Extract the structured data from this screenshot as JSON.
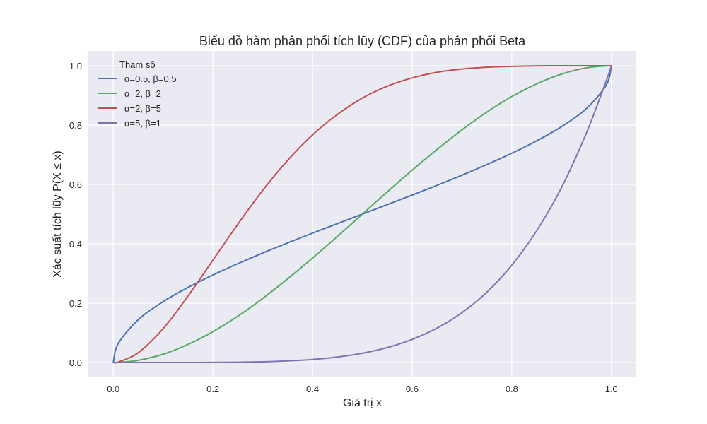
{
  "chart_data": {
    "type": "line",
    "title": "Biểu đồ hàm phân phối tích lũy (CDF) của phân phối Beta",
    "xlabel": "Giá trị x",
    "ylabel": "Xác suất tích lũy P(X ≤ x)",
    "xlim": [
      -0.05,
      1.05
    ],
    "ylim": [
      -0.05,
      1.05
    ],
    "xticks": [
      0.0,
      0.2,
      0.4,
      0.6,
      0.8,
      1.0
    ],
    "yticks": [
      0.0,
      0.2,
      0.4,
      0.6,
      0.8,
      1.0
    ],
    "xtick_labels": [
      "0.0",
      "0.2",
      "0.4",
      "0.6",
      "0.8",
      "1.0"
    ],
    "ytick_labels": [
      "0.0",
      "0.2",
      "0.4",
      "0.6",
      "0.8",
      "1.0"
    ],
    "grid": true,
    "legend": {
      "title": "Tham số",
      "placement": "upper-left"
    },
    "colors": {
      "background": "#eaeaf2",
      "grid": "#ffffff"
    },
    "x": [
      0.0,
      0.01,
      0.05,
      0.1,
      0.15,
      0.2,
      0.25,
      0.3,
      0.35,
      0.4,
      0.45,
      0.5,
      0.55,
      0.6,
      0.65,
      0.7,
      0.75,
      0.8,
      0.85,
      0.9,
      0.95,
      0.99,
      1.0
    ],
    "series": [
      {
        "name": "α=0.5, β=0.5",
        "color": "#4c72b0",
        "values": [
          0.0,
          0.064,
          0.144,
          0.205,
          0.253,
          0.295,
          0.333,
          0.369,
          0.403,
          0.436,
          0.468,
          0.5,
          0.532,
          0.564,
          0.597,
          0.631,
          0.667,
          0.705,
          0.747,
          0.795,
          0.856,
          0.936,
          1.0
        ]
      },
      {
        "name": "α=2, β=2",
        "color": "#55a868",
        "values": [
          0.0,
          0.0003,
          0.0073,
          0.028,
          0.061,
          0.104,
          0.156,
          0.216,
          0.282,
          0.352,
          0.425,
          0.5,
          0.575,
          0.648,
          0.718,
          0.784,
          0.844,
          0.896,
          0.939,
          0.972,
          0.993,
          0.9997,
          1.0
        ]
      },
      {
        "name": "α=2, β=5",
        "color": "#c44e52",
        "values": [
          0.0,
          0.0015,
          0.033,
          0.114,
          0.224,
          0.345,
          0.466,
          0.58,
          0.681,
          0.767,
          0.836,
          0.891,
          0.931,
          0.959,
          0.978,
          0.989,
          0.995,
          0.998,
          0.9996,
          0.99994,
          0.999995,
          1.0,
          1.0
        ]
      },
      {
        "name": "α=5, β=1",
        "color": "#8172b3",
        "values": [
          0.0,
          0.0,
          3e-07,
          1e-05,
          7.6e-05,
          0.00032,
          0.00098,
          0.0024,
          0.0053,
          0.0102,
          0.0185,
          0.03125,
          0.0503,
          0.0778,
          0.116,
          0.168,
          0.237,
          0.328,
          0.444,
          0.59,
          0.774,
          0.951,
          1.0
        ]
      }
    ]
  }
}
